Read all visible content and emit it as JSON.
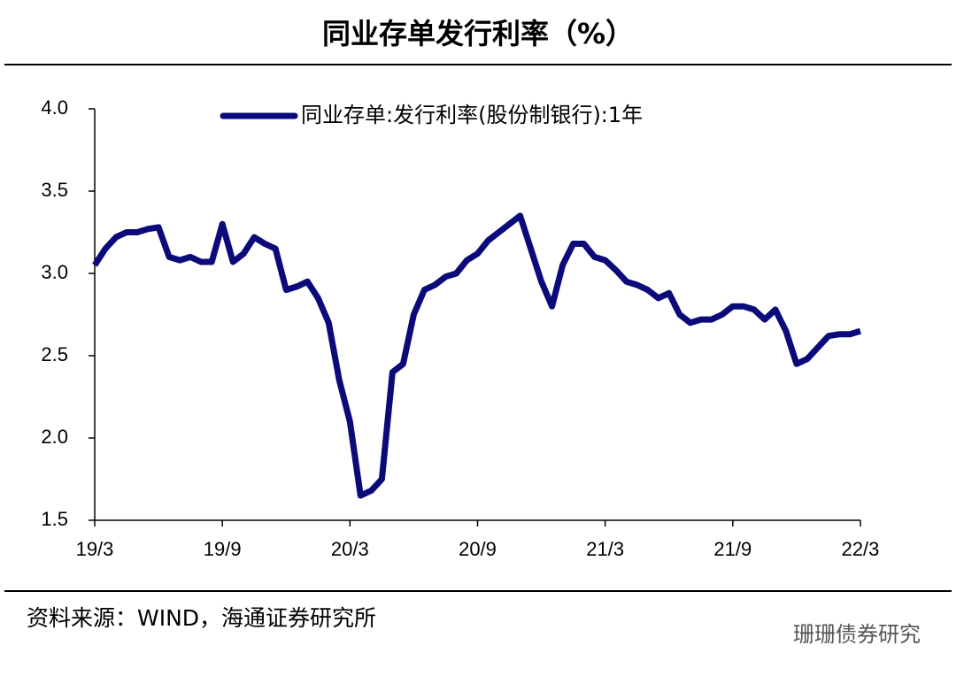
{
  "chart_data": {
    "type": "line",
    "title": "同业存单发行利率（%）",
    "source": "资料来源：WIND，海通证券研究所",
    "watermark": "珊珊债券研究",
    "categories": [
      "19/3",
      null,
      null,
      null,
      null,
      null,
      null,
      null,
      null,
      null,
      null,
      null,
      "19/9",
      null,
      null,
      null,
      null,
      null,
      null,
      null,
      null,
      null,
      null,
      null,
      "20/3",
      null,
      null,
      null,
      null,
      null,
      null,
      null,
      null,
      null,
      null,
      null,
      "20/9",
      null,
      null,
      null,
      null,
      null,
      null,
      null,
      null,
      null,
      null,
      null,
      "21/3",
      null,
      null,
      null,
      null,
      null,
      null,
      null,
      null,
      null,
      null,
      null,
      "21/9",
      null,
      null,
      null,
      null,
      null,
      null,
      null,
      null,
      null,
      null,
      null,
      "22/3"
    ],
    "series": [
      {
        "name": "同业存单:发行利率(股份制银行):1年",
        "color": "#0a0a7a",
        "values": [
          3.05,
          3.15,
          3.22,
          3.25,
          3.25,
          3.27,
          3.28,
          3.1,
          3.08,
          3.1,
          3.07,
          3.07,
          3.3,
          3.07,
          3.12,
          3.22,
          3.18,
          3.15,
          2.9,
          2.92,
          2.95,
          2.85,
          2.7,
          2.35,
          2.1,
          1.65,
          1.68,
          1.75,
          2.4,
          2.45,
          2.75,
          2.9,
          2.93,
          2.98,
          3.0,
          3.08,
          3.12,
          3.2,
          3.25,
          3.3,
          3.35,
          3.15,
          2.95,
          2.8,
          3.05,
          3.18,
          3.18,
          3.1,
          3.08,
          3.02,
          2.95,
          2.93,
          2.9,
          2.85,
          2.88,
          2.75,
          2.7,
          2.72,
          2.72,
          2.75,
          2.8,
          2.8,
          2.78,
          2.72,
          2.78,
          2.65,
          2.45,
          2.48,
          2.55,
          2.62,
          2.63,
          2.63,
          2.65
        ]
      }
    ],
    "ylim": [
      1.5,
      4.0
    ],
    "yticks": [
      1.5,
      {
        "value": 2.0,
        "label": "2.0"
      },
      2.5,
      {
        "value": 3.0,
        "label": "3.0"
      },
      3.5,
      {
        "value": 4.0,
        "label": "4.0"
      }
    ]
  }
}
